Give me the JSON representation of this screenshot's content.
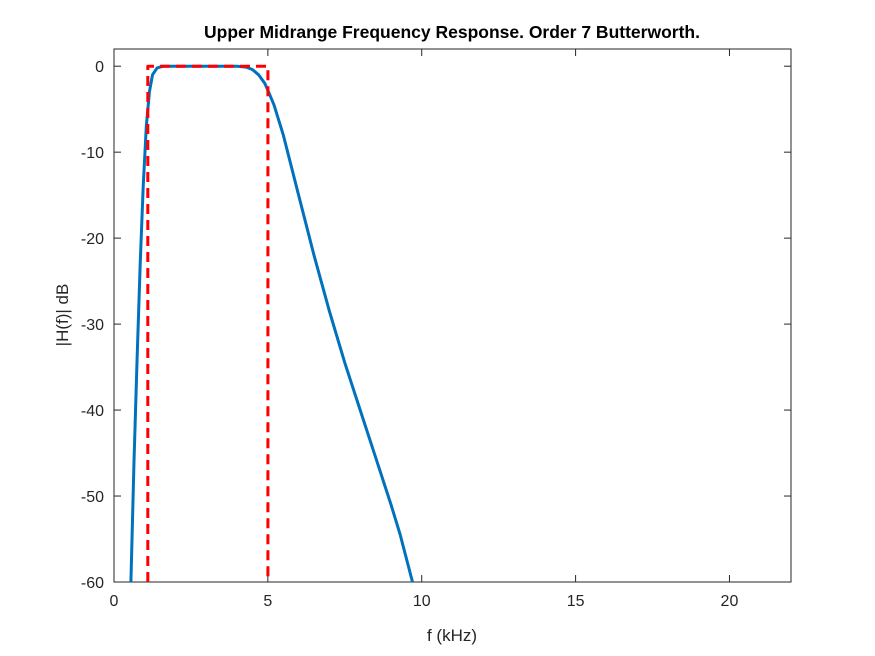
{
  "chart_data": {
    "type": "line",
    "title": "Upper Midrange Frequency Response. Order 7 Butterworth.",
    "xlabel": "f (kHz)",
    "ylabel": "|H(f)| dB",
    "xlim": [
      0,
      22
    ],
    "ylim": [
      -60,
      2
    ],
    "xticks": [
      0,
      5,
      10,
      15,
      20
    ],
    "xtick_labels": [
      "0",
      "5",
      "10",
      "15",
      "20"
    ],
    "yticks": [
      0,
      -10,
      -20,
      -30,
      -40,
      -50,
      -60
    ],
    "ytick_labels": [
      "0",
      "-10",
      "-20",
      "-30",
      "-40",
      "-50",
      "-60"
    ],
    "grid": false,
    "legend": "none",
    "series": [
      {
        "style": "solid",
        "color": "#0072BD",
        "x": [
          0.55,
          0.65,
          0.75,
          0.85,
          0.95,
          1.05,
          1.15,
          1.25,
          1.4,
          1.6,
          2.0,
          3.0,
          4.0,
          4.3,
          4.5,
          4.7,
          4.9,
          5.0,
          5.2,
          5.5,
          6.0,
          6.5,
          7.0,
          7.5,
          8.0,
          8.5,
          9.0,
          9.3,
          9.7
        ],
        "y": [
          -60,
          -46,
          -34,
          -23,
          -14,
          -7,
          -3,
          -1,
          -0.2,
          0,
          0,
          0,
          0,
          -0.1,
          -0.4,
          -1,
          -2,
          -2.8,
          -4.5,
          -8,
          -15,
          -22,
          -28.5,
          -34.5,
          -40,
          -45.5,
          -51,
          -54.5,
          -60
        ]
      },
      {
        "style": "dashed",
        "color": "#FF0000",
        "x": [
          1.1,
          1.1,
          5.0,
          5.0
        ],
        "y": [
          -60,
          0,
          0,
          -60
        ]
      }
    ]
  }
}
